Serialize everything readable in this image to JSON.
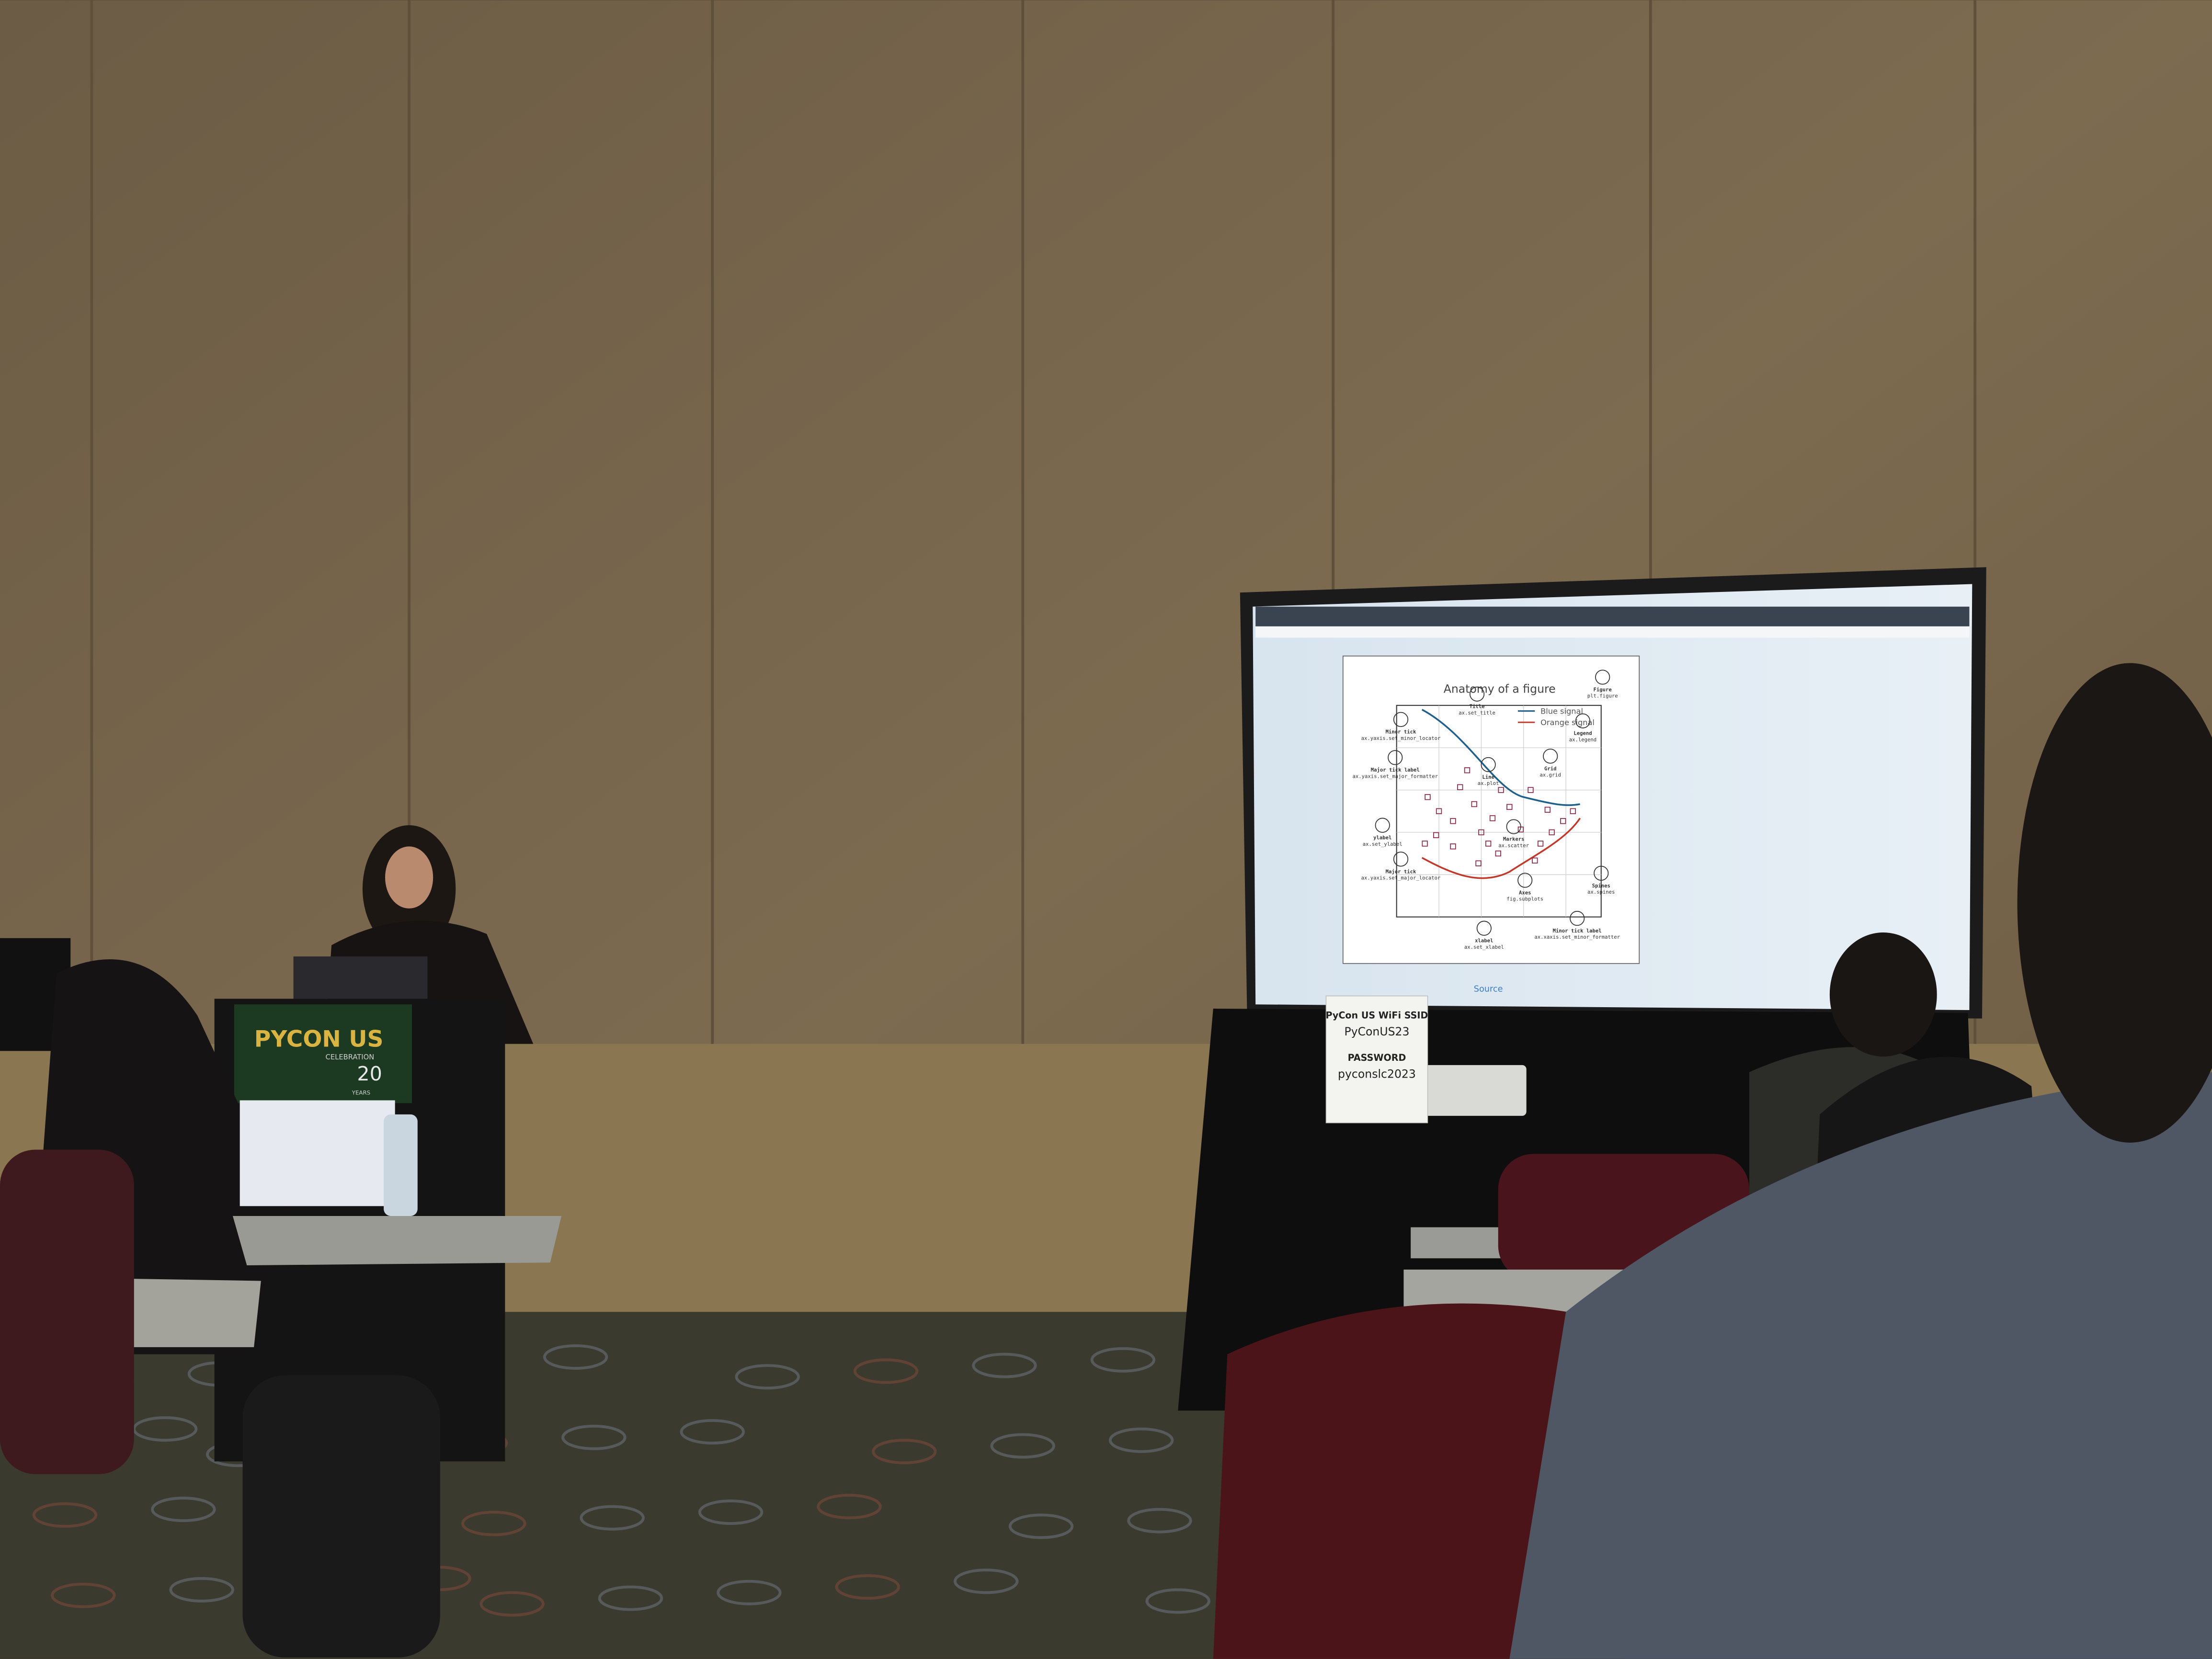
{
  "banner": {
    "title": "PYCON US",
    "subtitle": "CELEBRATION",
    "years_number": "20",
    "years_label": "YEARS"
  },
  "slide": {
    "figure_title": "Anatomy of a figure",
    "legend": [
      "Blue signal",
      "Orange signal"
    ],
    "annotations": [
      {
        "label": "Title",
        "code": "ax.set_title"
      },
      {
        "label": "Figure",
        "code": "plt.figure"
      },
      {
        "label": "Legend",
        "code": "ax.legend"
      },
      {
        "label": "Grid",
        "code": "ax.grid"
      },
      {
        "label": "Line",
        "code": "ax.plot"
      },
      {
        "label": "Markers",
        "code": "ax.scatter"
      },
      {
        "label": "Minor tick",
        "code": "ax.yaxis.set_minor_locator"
      },
      {
        "label": "Major tick label",
        "code": "ax.yaxis.set_major_formatter"
      },
      {
        "label": "ylabel",
        "code": "ax.set_ylabel"
      },
      {
        "label": "Major tick",
        "code": "ax.yaxis.set_major_locator"
      },
      {
        "label": "Axes",
        "code": "fig.subplots"
      },
      {
        "label": "Spines",
        "code": "ax.spines"
      },
      {
        "label": "Minor tick label",
        "code": "ax.xaxis.set_minor_formatter"
      },
      {
        "label": "xlabel",
        "code": "ax.set_xlabel"
      }
    ],
    "link": "Source"
  },
  "wifi_sign": {
    "heading": "PyCon US WiFi SSID",
    "ssid": "PyConUS23",
    "password_label": "PASSWORD",
    "password": "pyconslc2023"
  }
}
